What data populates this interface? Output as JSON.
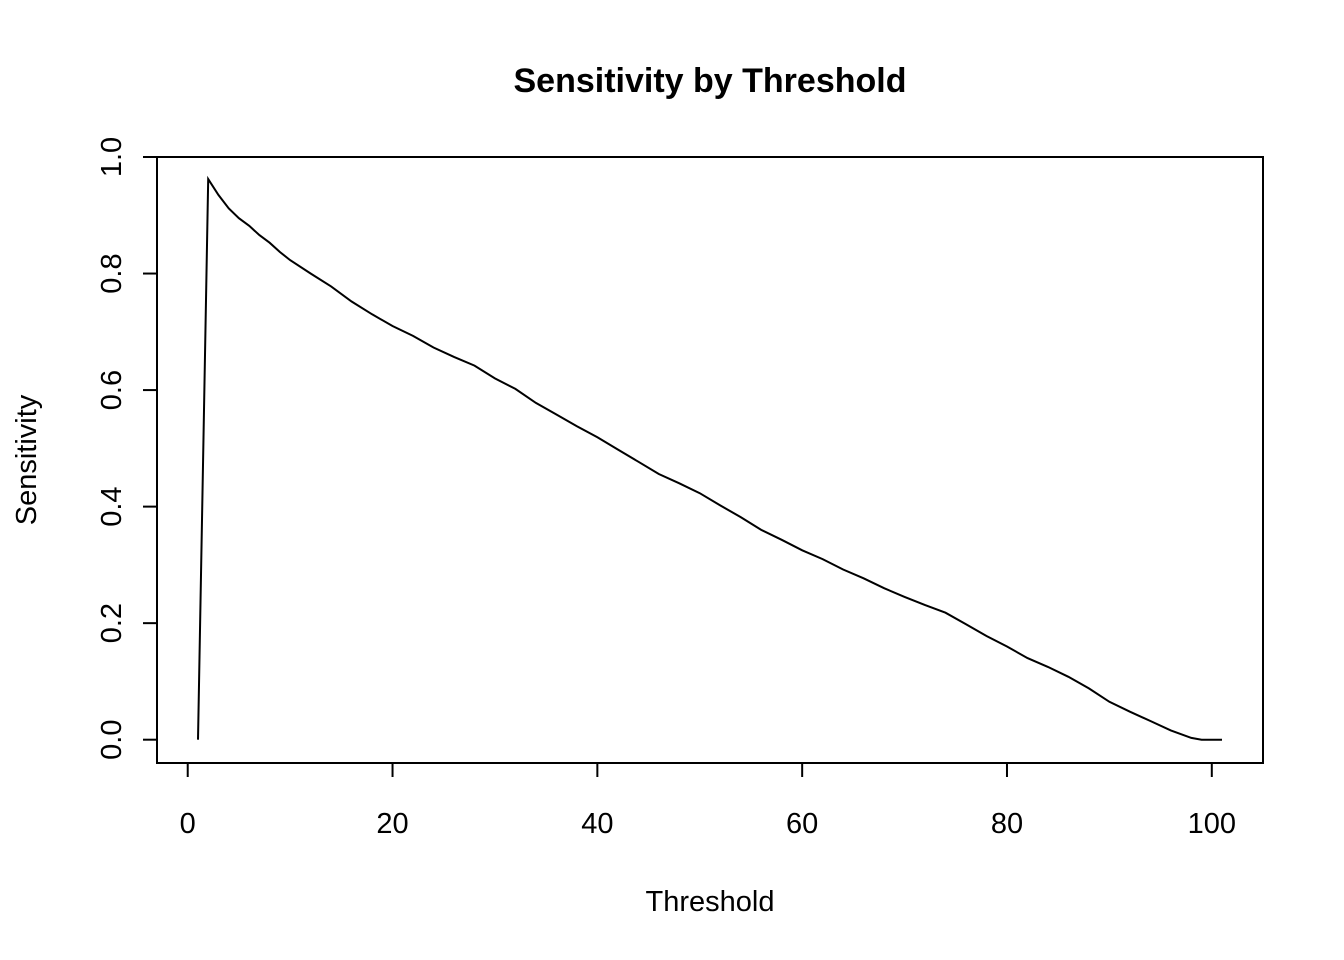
{
  "chart_data": {
    "type": "line",
    "title": "Sensitivity by Threshold",
    "xlabel": "Threshold",
    "ylabel": "Sensitivity",
    "xlim": [
      -3,
      105
    ],
    "ylim": [
      -0.04,
      1.0
    ],
    "xticks": [
      0,
      20,
      40,
      60,
      80,
      100
    ],
    "yticks": [
      0.0,
      0.2,
      0.4,
      0.6,
      0.8,
      1.0
    ],
    "xtick_labels": [
      "0",
      "20",
      "40",
      "60",
      "80",
      "100"
    ],
    "ytick_labels": [
      "0.0",
      "0.2",
      "0.4",
      "0.6",
      "0.8",
      "1.0"
    ],
    "grid": false,
    "legend": "none",
    "series": [
      {
        "x": [
          1,
          2,
          3,
          4,
          5,
          6,
          7,
          8,
          9,
          10,
          12,
          14,
          16,
          18,
          20,
          22,
          24,
          26,
          28,
          30,
          32,
          34,
          36,
          38,
          40,
          42,
          44,
          46,
          48,
          50,
          52,
          54,
          56,
          58,
          60,
          62,
          64,
          66,
          68,
          70,
          72,
          74,
          76,
          78,
          80,
          82,
          84,
          86,
          88,
          90,
          92,
          94,
          96,
          98,
          99,
          100,
          101
        ],
        "y": [
          0.0,
          0.962,
          0.935,
          0.912,
          0.895,
          0.882,
          0.866,
          0.853,
          0.837,
          0.823,
          0.8,
          0.778,
          0.752,
          0.73,
          0.71,
          0.693,
          0.673,
          0.657,
          0.642,
          0.62,
          0.602,
          0.578,
          0.558,
          0.538,
          0.519,
          0.498,
          0.477,
          0.456,
          0.44,
          0.423,
          0.402,
          0.382,
          0.36,
          0.343,
          0.325,
          0.31,
          0.292,
          0.277,
          0.26,
          0.245,
          0.231,
          0.218,
          0.198,
          0.178,
          0.16,
          0.14,
          0.125,
          0.108,
          0.088,
          0.065,
          0.048,
          0.032,
          0.016,
          0.003,
          0.0,
          0.0,
          0.0
        ],
        "color": "#000000"
      }
    ]
  }
}
